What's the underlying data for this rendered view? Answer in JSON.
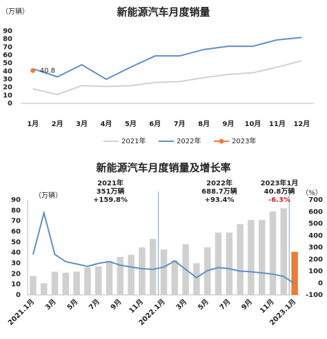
{
  "chart_data": [
    {
      "type": "line",
      "title": "新能源汽车月度销量",
      "y_unit": "（万辆）",
      "categories": [
        "1月",
        "2月",
        "3月",
        "4月",
        "5月",
        "6月",
        "7月",
        "8月",
        "9月",
        "10月",
        "11月",
        "12月"
      ],
      "series": [
        {
          "name": "2021年",
          "color": "#d0d0d0",
          "values": [
            18,
            11,
            22,
            21,
            22,
            26,
            27,
            32,
            36,
            38,
            45,
            53
          ]
        },
        {
          "name": "2022年",
          "color": "#5b8fc7",
          "values": [
            43,
            33,
            48,
            30,
            45,
            59,
            59,
            67,
            71,
            71,
            79,
            82
          ]
        },
        {
          "name": "2023年",
          "color": "#ed7d31",
          "marker": true,
          "values": [
            40.8,
            null,
            null,
            null,
            null,
            null,
            null,
            null,
            null,
            null,
            null,
            null
          ]
        }
      ],
      "ylim": [
        0,
        90
      ],
      "yticks": [
        0,
        10,
        20,
        30,
        40,
        50,
        60,
        70,
        80,
        90
      ],
      "legend": "bottom"
    },
    {
      "type": "combo",
      "title": "新能源汽车月度销量及增长率",
      "y_unit": "（万辆）",
      "y2_unit": "（%）",
      "categories": [
        "2021.1月",
        null,
        "3月",
        null,
        "5月",
        null,
        "7月",
        null,
        "9月",
        null,
        "11月",
        null,
        "2022.1月",
        null,
        "3月",
        null,
        "5月",
        null,
        "7月",
        null,
        "9月",
        null,
        "11月",
        null,
        "2023.1月"
      ],
      "series": [
        {
          "type": "bar",
          "color": "#d0d0d0",
          "colors": [
            "#d0d0d0",
            "#d0d0d0",
            "#d0d0d0",
            "#d0d0d0",
            "#d0d0d0",
            "#d0d0d0",
            "#d0d0d0",
            "#d0d0d0",
            "#d0d0d0",
            "#d0d0d0",
            "#d0d0d0",
            "#d0d0d0",
            "#d0d0d0",
            "#d0d0d0",
            "#d0d0d0",
            "#d0d0d0",
            "#d0d0d0",
            "#d0d0d0",
            "#d0d0d0",
            "#d0d0d0",
            "#d0d0d0",
            "#d0d0d0",
            "#d0d0d0",
            "#d0d0d0",
            "#ed7d31"
          ],
          "values": [
            18,
            11,
            22,
            21,
            22,
            26,
            27,
            32,
            36,
            38,
            45,
            53,
            43,
            33,
            48,
            30,
            45,
            59,
            59,
            67,
            71,
            71,
            79,
            82,
            40.8
          ]
        },
        {
          "type": "line",
          "axis": "y2",
          "color": "#5b8fc7",
          "values": [
            240,
            590,
            240,
            180,
            160,
            140,
            165,
            180,
            150,
            135,
            120,
            115,
            135,
            185,
            115,
            45,
            105,
            130,
            120,
            100,
            95,
            85,
            75,
            55,
            -6.3
          ]
        }
      ],
      "ylim": [
        0,
        90
      ],
      "yticks": [
        0,
        10,
        20,
        30,
        40,
        50,
        60,
        70,
        80,
        90
      ],
      "y2lim": [
        -100,
        700
      ],
      "y2ticks": [
        -100,
        0,
        100,
        200,
        300,
        400,
        500,
        600,
        700
      ],
      "annotations": [
        {
          "lines": [
            "2021年",
            "351万辆",
            "+159.8%"
          ]
        },
        {
          "lines": [
            "2022年",
            "688.7万辆",
            "+93.4%"
          ]
        },
        {
          "lines": [
            "2023年1月",
            "40.8万辆",
            "-6.3%"
          ],
          "last_line_color": "#e02020"
        }
      ]
    }
  ]
}
